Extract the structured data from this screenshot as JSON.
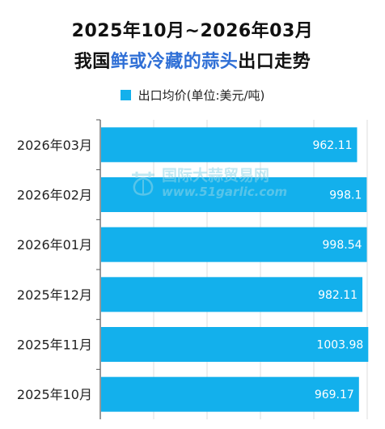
{
  "title": {
    "line1": "2025年10月~2026年03月",
    "line2_prefix": "我国",
    "line2_highlight": "鲜或冷藏的蒜头",
    "line2_suffix": "出口走势"
  },
  "watermark": {
    "logo_icon": "garlic-logo-icon",
    "text_cn": "国际大蒜贸易网",
    "text_url": "www.51garlic.com"
  },
  "colors": {
    "bar": "#13b0ec",
    "title_highlight": "#2f6fd6",
    "grid": "#dedede",
    "value_label": "#ffffff"
  },
  "chart_data": {
    "type": "bar",
    "orientation": "horizontal",
    "title": "2025年10月~2026年03月 我国鲜或冷藏的蒜头出口走势",
    "xlabel": "",
    "ylabel": "",
    "categories": [
      "2026年03月",
      "2026年02月",
      "2026年01月",
      "2025年12月",
      "2025年11月",
      "2025年10月"
    ],
    "series": [
      {
        "name": "出口均价(单位:美元/吨)",
        "values": [
          962.11,
          998.1,
          998.54,
          982.11,
          1003.98,
          969.17
        ],
        "labels": [
          "962.11",
          "998.1",
          "998.54",
          "982.11",
          "1003.98",
          "969.17"
        ]
      }
    ],
    "xlim": [
      0,
      1000
    ],
    "x_gridlines": [
      0,
      200,
      400,
      600,
      800,
      1000
    ],
    "x_tick_labels_visible": false,
    "legend_position": "top",
    "grid": true
  }
}
